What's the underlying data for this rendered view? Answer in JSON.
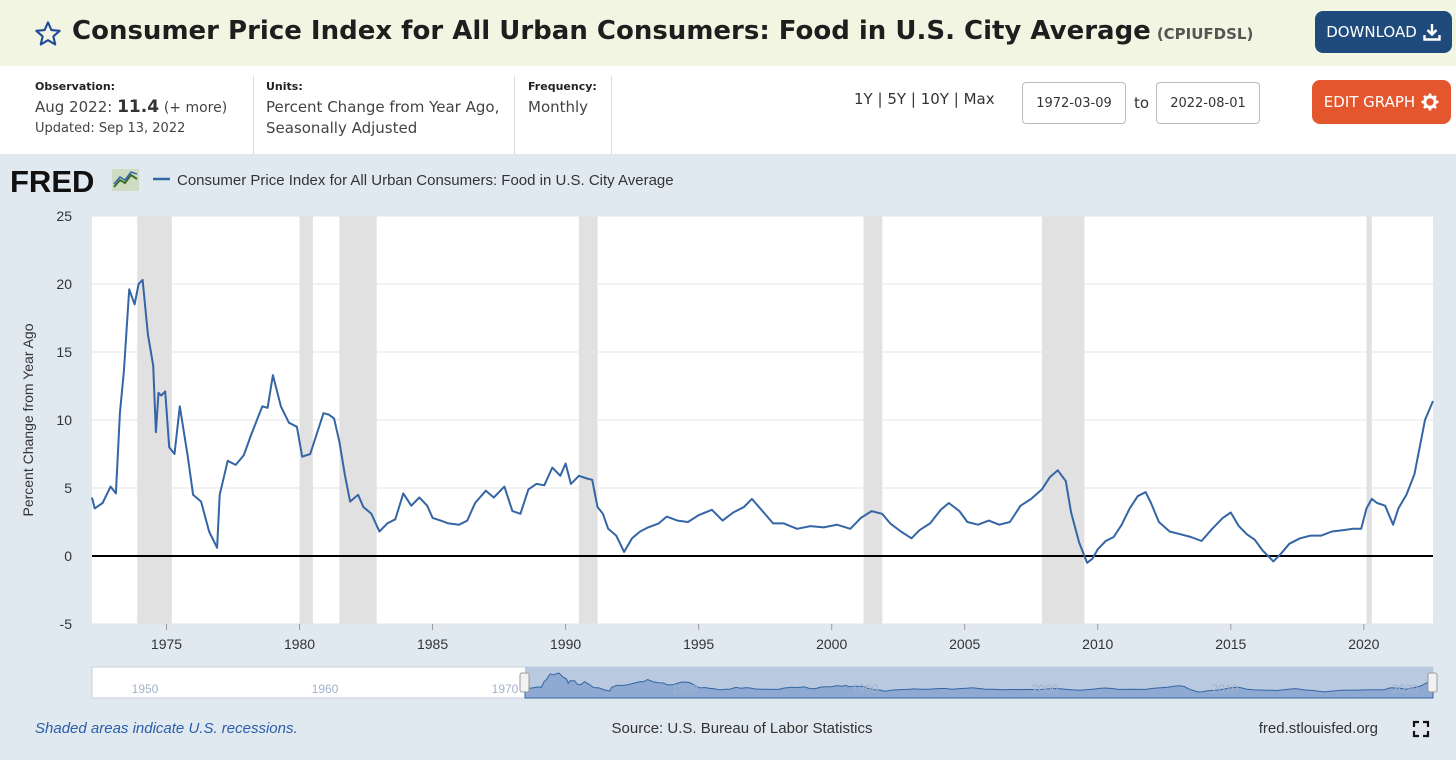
{
  "header": {
    "title": "Consumer Price Index for All Urban Consumers: Food in U.S. City Average",
    "series_id": "(CPIUFDSL)",
    "download_label": "DOWNLOAD",
    "icons": [
      "star-icon",
      "download-icon",
      "gear-icon"
    ]
  },
  "meta": {
    "observation_label": "Observation:",
    "observation_date": "Aug 2022:",
    "observation_value": "11.4",
    "observation_more": "(+ more)",
    "updated": "Updated: Sep 13, 2022",
    "units_label": "Units:",
    "units_line1": "Percent Change from Year Ago,",
    "units_line2": "Seasonally Adjusted",
    "frequency_label": "Frequency:",
    "frequency_value": "Monthly"
  },
  "controls": {
    "range_1y": "1Y",
    "range_5y": "5Y",
    "range_10y": "10Y",
    "range_max": "Max",
    "separator": "|",
    "start_date": "1972-03-09",
    "to_label": "to",
    "end_date": "2022-08-01",
    "edit_label": "EDIT GRAPH"
  },
  "footer": {
    "recession_note": "Shaded areas indicate U.S. recessions.",
    "source": "Source: U.S. Bureau of Labor Statistics",
    "site": "fred.stlouisfed.org"
  },
  "colors": {
    "series": "#3465a4",
    "recession": "#e1e1e1",
    "title_bar": "#f3f5e3",
    "download_button": "#1f4a7c",
    "edit_button": "#e4572e"
  },
  "chart_data": {
    "type": "line",
    "logo": "FRED",
    "legend": "Consumer Price Index for All Urban Consumers: Food in U.S. City Average",
    "ylabel": "Percent Change from Year Ago",
    "xlim": [
      1972.2,
      2022.6
    ],
    "ylim": [
      -5,
      25
    ],
    "yticks": [
      -5,
      0,
      5,
      10,
      15,
      20,
      25
    ],
    "xticks": [
      1975,
      1980,
      1985,
      1990,
      1995,
      2000,
      2005,
      2010,
      2015,
      2020
    ],
    "grid": true,
    "zero_line": true,
    "recessions": [
      [
        1973.9,
        1975.2
      ],
      [
        1980.0,
        1980.5
      ],
      [
        1981.5,
        1982.9
      ],
      [
        1990.5,
        1991.2
      ],
      [
        2001.2,
        2001.9
      ],
      [
        2007.9,
        2009.5
      ],
      [
        2020.1,
        2020.3
      ]
    ],
    "navigator_ticks": [
      "1950",
      "1960",
      "1970",
      "1980",
      "1990",
      "2000",
      "2010",
      "2020"
    ],
    "series": [
      {
        "name": "Consumer Price Index for All Urban Consumers: Food in U.S. City Average",
        "x": [
          1972.2,
          1972.3,
          1972.6,
          1972.9,
          1973.1,
          1973.25,
          1973.4,
          1973.6,
          1973.8,
          1973.95,
          1974.1,
          1974.3,
          1974.5,
          1974.6,
          1974.7,
          1974.8,
          1974.95,
          1975.1,
          1975.3,
          1975.5,
          1975.8,
          1976.0,
          1976.3,
          1976.6,
          1976.9,
          1977.0,
          1977.3,
          1977.6,
          1977.9,
          1978.2,
          1978.6,
          1978.8,
          1979.0,
          1979.3,
          1979.6,
          1979.9,
          1980.1,
          1980.4,
          1980.7,
          1980.9,
          1981.1,
          1981.3,
          1981.5,
          1981.7,
          1981.9,
          1982.2,
          1982.4,
          1982.7,
          1983.0,
          1983.3,
          1983.6,
          1983.9,
          1984.2,
          1984.5,
          1984.8,
          1985.0,
          1985.3,
          1985.6,
          1986.0,
          1986.3,
          1986.6,
          1987.0,
          1987.3,
          1987.7,
          1988.0,
          1988.3,
          1988.6,
          1988.9,
          1989.2,
          1989.5,
          1989.8,
          1990.0,
          1990.2,
          1990.5,
          1990.8,
          1991.0,
          1991.2,
          1991.4,
          1991.6,
          1991.9,
          1992.2,
          1992.5,
          1992.8,
          1993.1,
          1993.5,
          1993.8,
          1994.2,
          1994.6,
          1995.0,
          1995.5,
          1995.9,
          1996.3,
          1996.7,
          1997.0,
          1997.4,
          1997.8,
          1998.2,
          1998.7,
          1999.2,
          1999.7,
          2000.2,
          2000.7,
          2001.1,
          2001.5,
          2001.9,
          2002.2,
          2002.6,
          2003.0,
          2003.3,
          2003.7,
          2004.1,
          2004.4,
          2004.8,
          2005.1,
          2005.5,
          2005.9,
          2006.3,
          2006.7,
          2007.1,
          2007.5,
          2007.9,
          2008.2,
          2008.5,
          2008.8,
          2009.0,
          2009.3,
          2009.6,
          2009.8,
          2010.0,
          2010.3,
          2010.6,
          2010.9,
          2011.2,
          2011.5,
          2011.8,
          2012.0,
          2012.3,
          2012.7,
          2013.1,
          2013.5,
          2013.9,
          2014.3,
          2014.7,
          2015.0,
          2015.3,
          2015.6,
          2015.9,
          2016.2,
          2016.6,
          2016.9,
          2017.2,
          2017.6,
          2018.0,
          2018.4,
          2018.8,
          2019.2,
          2019.6,
          2019.9,
          2020.1,
          2020.3,
          2020.5,
          2020.8,
          2021.1,
          2021.3,
          2021.6,
          2021.9,
          2022.1,
          2022.3,
          2022.6
        ],
        "values": [
          4.3,
          3.5,
          3.9,
          5.1,
          4.6,
          10.5,
          13.6,
          19.6,
          18.5,
          20.0,
          20.3,
          16.3,
          14.0,
          9.1,
          12.0,
          11.8,
          12.1,
          8.0,
          7.5,
          11.0,
          7.3,
          4.5,
          4.0,
          1.8,
          0.6,
          4.5,
          7.0,
          6.7,
          7.4,
          9.0,
          11.0,
          10.9,
          13.3,
          11.0,
          9.8,
          9.5,
          7.3,
          7.5,
          9.3,
          10.5,
          10.4,
          10.1,
          8.4,
          6.0,
          4.0,
          4.5,
          3.6,
          3.1,
          1.8,
          2.4,
          2.7,
          4.6,
          3.7,
          4.3,
          3.7,
          2.8,
          2.6,
          2.4,
          2.3,
          2.6,
          3.9,
          4.8,
          4.3,
          5.1,
          3.3,
          3.1,
          4.9,
          5.3,
          5.2,
          6.5,
          5.9,
          6.8,
          5.3,
          5.9,
          5.7,
          5.6,
          3.6,
          3.1,
          2.0,
          1.5,
          0.3,
          1.3,
          1.8,
          2.1,
          2.4,
          2.9,
          2.6,
          2.5,
          3.0,
          3.4,
          2.6,
          3.2,
          3.6,
          4.2,
          3.3,
          2.4,
          2.4,
          2.0,
          2.2,
          2.1,
          2.3,
          2.0,
          2.8,
          3.3,
          3.1,
          2.4,
          1.8,
          1.3,
          1.9,
          2.4,
          3.4,
          3.9,
          3.3,
          2.5,
          2.3,
          2.6,
          2.3,
          2.5,
          3.7,
          4.2,
          4.9,
          5.8,
          6.3,
          5.5,
          3.2,
          1.0,
          -0.5,
          -0.2,
          0.5,
          1.1,
          1.4,
          2.3,
          3.5,
          4.4,
          4.7,
          3.9,
          2.5,
          1.8,
          1.6,
          1.4,
          1.1,
          2.0,
          2.8,
          3.2,
          2.2,
          1.6,
          1.2,
          0.4,
          -0.4,
          0.2,
          0.9,
          1.3,
          1.5,
          1.5,
          1.8,
          1.9,
          2.0,
          2.0,
          3.5,
          4.2,
          3.9,
          3.7,
          2.3,
          3.5,
          4.5,
          6.0,
          8.0,
          10.0,
          11.4
        ]
      }
    ]
  }
}
